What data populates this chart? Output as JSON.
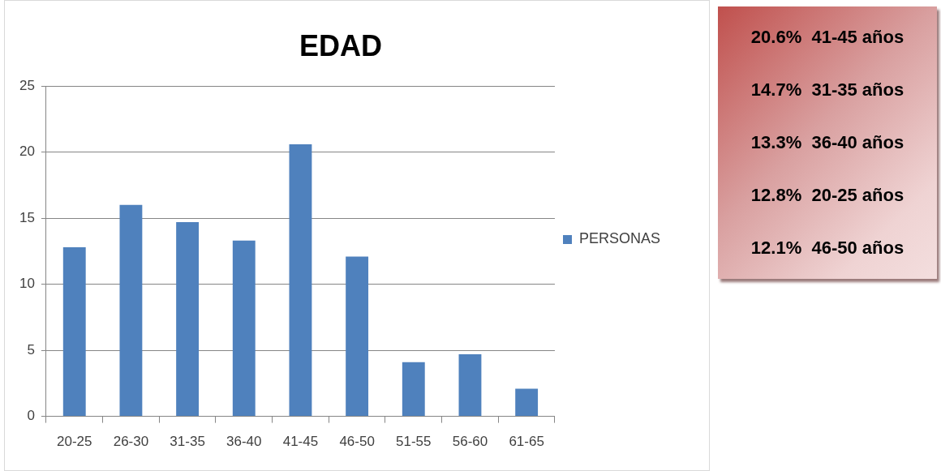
{
  "chart_data": [
    {
      "type": "bar",
      "title": "EDAD",
      "categories": [
        "20-25",
        "26-30",
        "31-35",
        "36-40",
        "41-45",
        "46-50",
        "51-55",
        "56-60",
        "61-65"
      ],
      "series": [
        {
          "name": "PERSONAS",
          "color": "#4f81bd",
          "values": [
            12.8,
            16.0,
            14.7,
            13.3,
            20.6,
            12.1,
            4.1,
            4.7,
            2.1
          ]
        }
      ],
      "ylim": [
        0,
        25
      ],
      "yticks": [
        0,
        5,
        10,
        15,
        20,
        25
      ],
      "grid": "y",
      "legend": "right"
    },
    {
      "type": "other",
      "annotations": [
        "20.6%  41-45 años",
        "14.7%  31-35 años",
        "13.3%  36-40 años",
        "12.8%  20-25 años",
        "12.1%  46-50 años"
      ]
    }
  ]
}
